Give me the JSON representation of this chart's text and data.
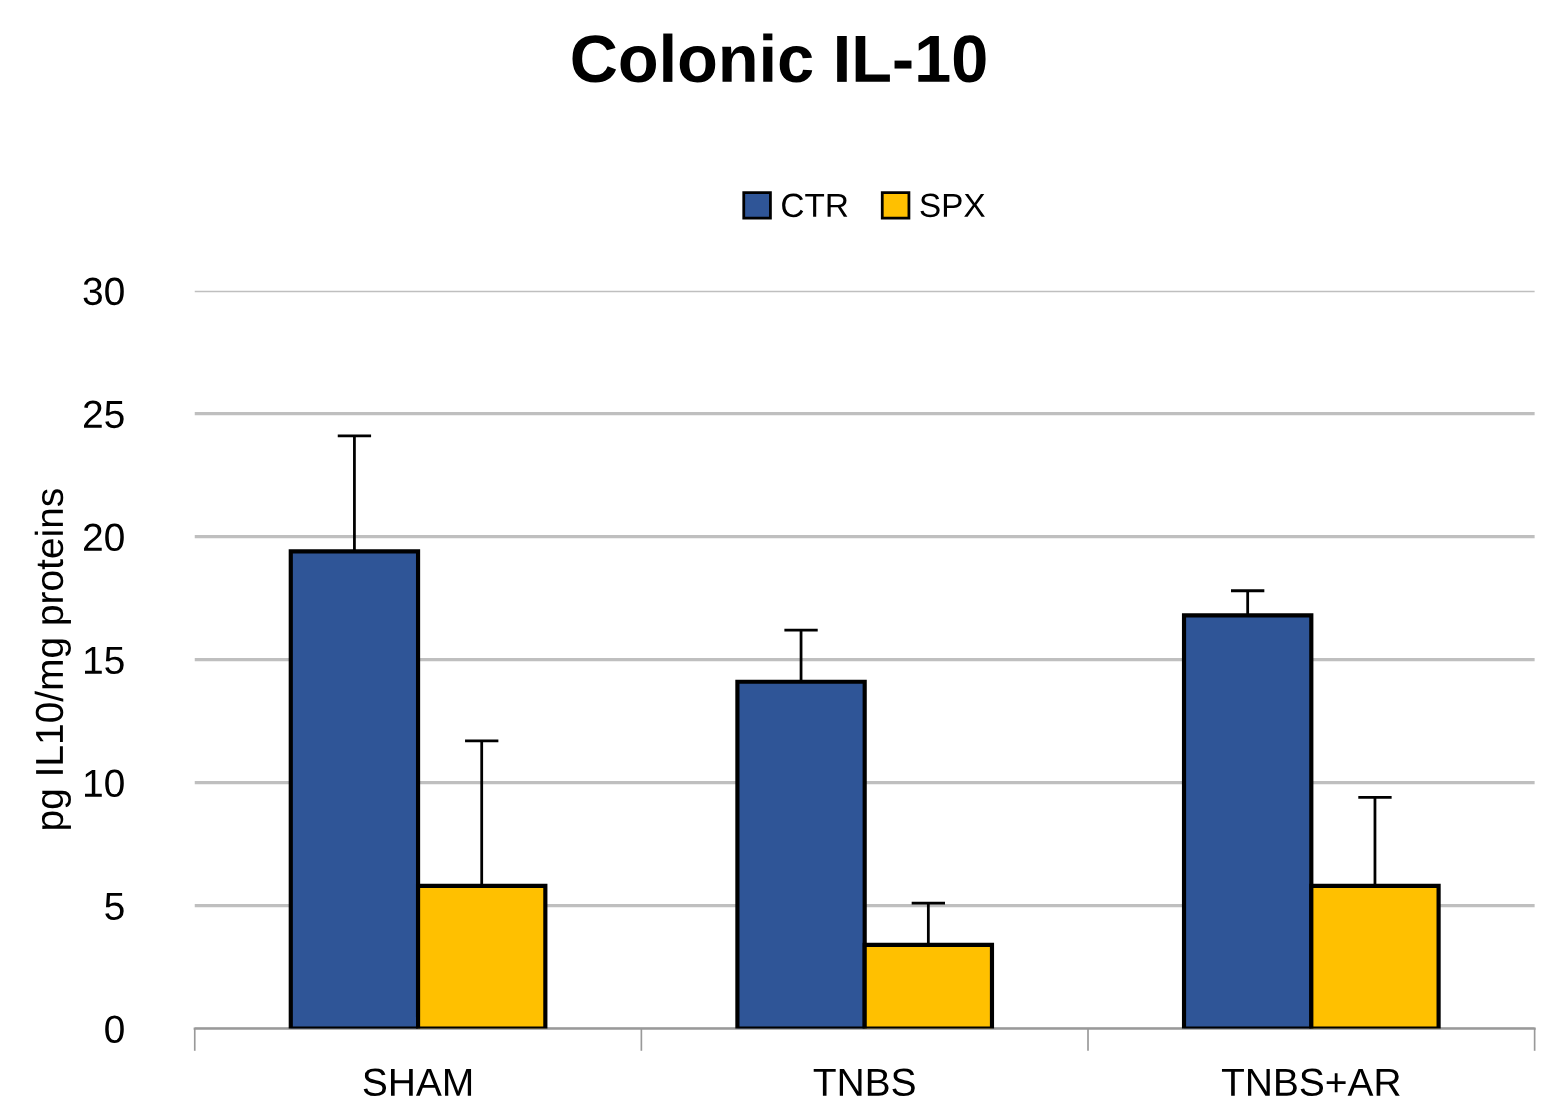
{
  "chart_data": {
    "type": "bar",
    "title": "Colonic IL-10",
    "ylabel": "pg IL10/mg proteins",
    "categories": [
      "SHAM",
      "TNBS",
      "TNBS+AR"
    ],
    "series": [
      {
        "name": "CTR",
        "color": "#2f5597",
        "values": [
          19.4,
          14.1,
          16.8
        ],
        "errors": [
          [
            19.4,
            24.1
          ],
          [
            14.1,
            16.2
          ],
          [
            16.8,
            17.8
          ]
        ]
      },
      {
        "name": "SPX",
        "color": "#ffc000",
        "values": [
          5.8,
          3.4,
          5.8
        ],
        "errors": [
          [
            5.8,
            11.7
          ],
          [
            3.4,
            5.1
          ],
          [
            5.8,
            9.4
          ]
        ]
      }
    ],
    "ylim": [
      0,
      30
    ],
    "yticks": [
      0,
      5,
      10,
      15,
      20,
      25,
      30
    ],
    "grid": "y",
    "legend": "top"
  }
}
